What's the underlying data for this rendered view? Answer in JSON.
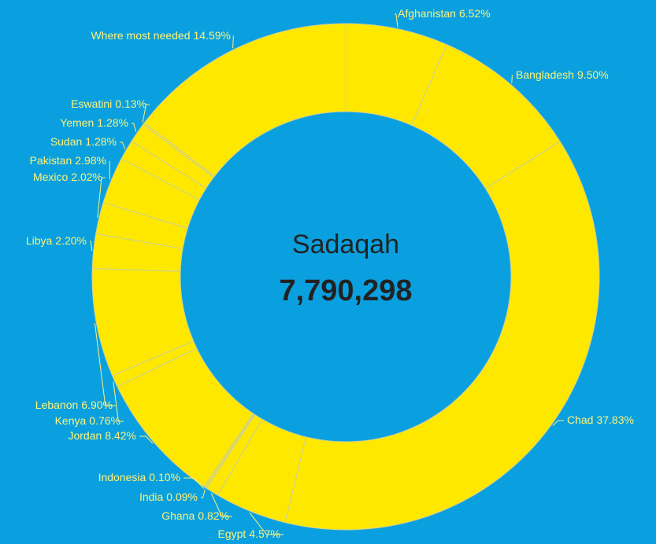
{
  "chart_data": {
    "type": "donut",
    "center_title": "Sadaqah",
    "center_value": "7,790,298",
    "color": "#ffe800",
    "categories": [
      "Afghanistan",
      "Bangladesh",
      "Chad",
      "Egypt",
      "Ghana",
      "India",
      "Indonesia",
      "Jordan",
      "Kenya",
      "Lebanon",
      "Libya",
      "Mexico",
      "Pakistan",
      "Sudan",
      "Yemen",
      "Eswatini",
      "Where most needed"
    ],
    "values": [
      6.52,
      9.5,
      37.83,
      4.57,
      0.82,
      0.09,
      0.1,
      8.42,
      0.76,
      6.9,
      2.2,
      2.02,
      2.98,
      1.28,
      1.28,
      0.13,
      14.59
    ],
    "value_labels": [
      "6.52%",
      "9.50%",
      "37.83%",
      "4.57%",
      "0.82%",
      "0.09%",
      "0.10%",
      "8.42%",
      "0.76%",
      "6.90%",
      "2.20%",
      "2.02%",
      "2.98%",
      "1.28%",
      "1.28%",
      "0.13%",
      "14.59%"
    ]
  }
}
